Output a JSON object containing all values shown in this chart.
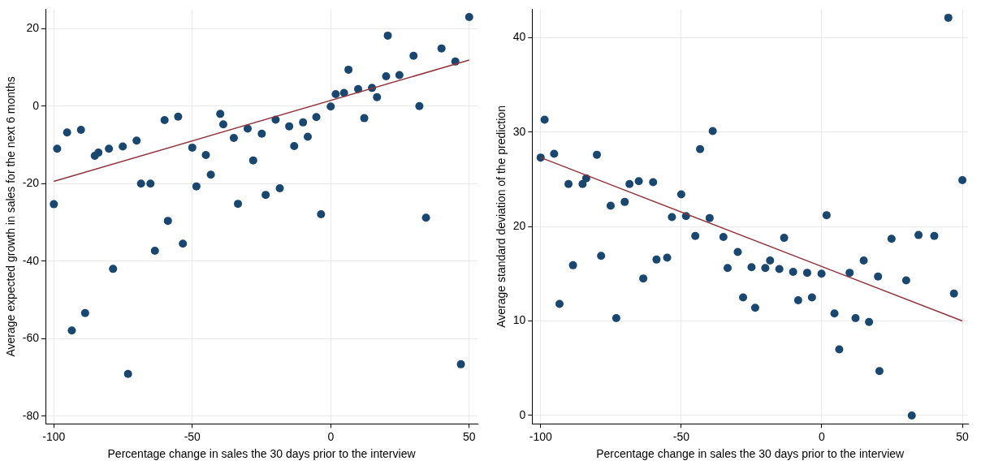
{
  "chart_data": [
    {
      "type": "scatter",
      "xlabel": "Percentage change in sales the 30 days prior to the interview",
      "ylabel": "Average expected growth in sales for the next 6 months",
      "xlim": [
        -103,
        53
      ],
      "ylim": [
        -82,
        25
      ],
      "xticks": [
        -100,
        -50,
        0,
        50
      ],
      "yticks": [
        -80,
        -60,
        -40,
        -20,
        0,
        20
      ],
      "grid": true,
      "legend": false,
      "series": [
        {
          "marker": "circle",
          "color": "#1a476f",
          "x": [
            -100,
            -98.8,
            -95.2,
            -90.2,
            -85.2,
            -83.9,
            -80.1,
            -75.1,
            -70.1,
            -68.5,
            -65.1,
            -60,
            -55.1,
            -50,
            -48.5,
            -45.1,
            -43.3,
            -39.9,
            -38.8,
            -35,
            -30,
            -28,
            -33.5,
            -24.9,
            -58.8,
            -63.5,
            -53.4,
            -78.6,
            -88.7,
            -93.5,
            -73.2,
            -19.9,
            -15,
            -13.2,
            -10,
            -8.3,
            -5.2,
            0,
            1.8,
            4.8,
            6.4,
            9.9,
            12.1,
            14.9,
            16.7,
            20,
            20.6,
            24.8,
            29.9,
            32,
            40,
            45,
            50,
            -23.5,
            -18.4,
            -3.5,
            34.4,
            47
          ],
          "values": [
            -25.3,
            -11,
            -6.8,
            -6.1,
            -12.8,
            -12,
            -11,
            -10.4,
            -8.9,
            -20,
            -20,
            -3.6,
            -2.7,
            -10.7,
            -20.7,
            -12.6,
            -17.7,
            -2,
            -4.7,
            -8.2,
            -5.8,
            -14,
            -25.2,
            -7.1,
            -29.6,
            -37.3,
            -35.5,
            -42,
            -53.4,
            -57.9,
            -69.1,
            -3.5,
            -5.2,
            -10.3,
            -4.2,
            -7.9,
            -2.8,
            -0.1,
            3.1,
            3.4,
            9.4,
            4.4,
            -3.1,
            4.7,
            2.3,
            7.7,
            18.2,
            8,
            13,
            0,
            14.9,
            11.5,
            23,
            -22.9,
            -21.2,
            -27.9,
            -28.8,
            -66.6
          ]
        },
        {
          "type": "line",
          "marker": "none",
          "color": "#90353b",
          "x": [
            -100,
            50
          ],
          "values": [
            -19.4,
            11.9
          ]
        }
      ]
    },
    {
      "type": "scatter",
      "xlabel": "Percentage change in sales the 30 days prior to the interview",
      "ylabel": "Average standard deviation of the prediction",
      "xlim": [
        -103,
        52
      ],
      "ylim": [
        -0.9,
        43
      ],
      "xticks": [
        -100,
        -50,
        0,
        50
      ],
      "yticks": [
        0,
        10,
        20,
        30,
        40
      ],
      "grid": true,
      "legend": false,
      "series": [
        {
          "marker": "circle",
          "color": "#1a476f",
          "x": [
            -100,
            -98.6,
            -95.2,
            -90.1,
            -85.1,
            -83.8,
            -80,
            -93.3,
            -88.5,
            -78.5,
            -73.1,
            -75.1,
            -70.1,
            -68.4,
            -65.1,
            -60,
            -63.5,
            -58.8,
            -55,
            -53.3,
            -50,
            -48.3,
            -45,
            -43.3,
            -39.9,
            -38.8,
            -35,
            -29.9,
            -33.5,
            -28,
            -25,
            -23.7,
            -20.1,
            -18.4,
            -15.1,
            -13.4,
            -10.2,
            -8.4,
            -5.2,
            -3.5,
            -0.1,
            1.7,
            4.5,
            6.2,
            9.9,
            12,
            14.9,
            16.8,
            20,
            20.5,
            24.8,
            30,
            32,
            34.4,
            40,
            45,
            47,
            50
          ],
          "values": [
            27.3,
            31.3,
            27.7,
            24.5,
            24.5,
            25.1,
            27.6,
            11.8,
            15.9,
            16.9,
            10.3,
            22.2,
            22.6,
            24.5,
            24.8,
            24.7,
            14.5,
            16.5,
            16.7,
            21,
            23.4,
            21.1,
            19,
            28.2,
            20.9,
            30.1,
            18.9,
            17.3,
            15.6,
            12.5,
            15.7,
            11.4,
            15.6,
            16.4,
            15.5,
            18.8,
            15.2,
            12.2,
            15.1,
            12.5,
            15,
            21.2,
            10.8,
            7,
            15.1,
            10.3,
            16.4,
            9.9,
            14.7,
            4.7,
            18.7,
            14.3,
            0,
            19.1,
            19,
            42.1,
            12.9,
            24.9
          ]
        },
        {
          "type": "line",
          "marker": "none",
          "color": "#90353b",
          "x": [
            -100,
            50
          ],
          "values": [
            27.3,
            10
          ]
        }
      ]
    }
  ]
}
